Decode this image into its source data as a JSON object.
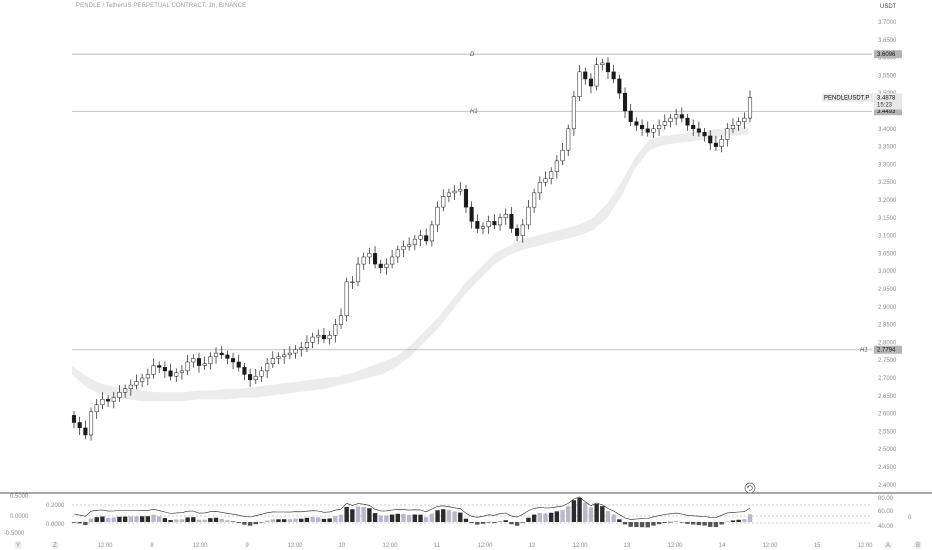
{
  "header": {
    "title": "PENDLE / TetherUS PERPETUAL CONTRACT, 1h, BINANCE",
    "currency": "USDT"
  },
  "axis_right": {
    "ticks": [
      "3.7000",
      "3.6500",
      "3.6000",
      "3.5500",
      "3.5000",
      "3.4500",
      "3.4000",
      "3.3500",
      "3.3000",
      "3.2500",
      "3.2000",
      "3.1500",
      "3.1000",
      "3.0500",
      "3.0000",
      "2.9500",
      "2.9000",
      "2.8500",
      "2.8000",
      "2.7500",
      "2.7000",
      "2.6500",
      "2.6000",
      "2.5500",
      "2.5000",
      "2.4500",
      "2.4000"
    ],
    "ticks_in_range": [
      "3.6000",
      "2.6000"
    ]
  },
  "levels": [
    {
      "label": "D",
      "value": "3.6096"
    },
    {
      "label": "H1",
      "value": "3.4493"
    },
    {
      "label": "H1",
      "value": "2.7794"
    }
  ],
  "symbol_badge": {
    "name": "PENDLEUSDT.P",
    "price": "3.4878",
    "countdown": "15:23",
    "level": "3.4493"
  },
  "x_axis": {
    "ticks": [
      "12:00",
      "8",
      "12:00",
      "9",
      "12:00",
      "10",
      "12:00",
      "11",
      "12:00",
      "12",
      "12:00",
      "13",
      "12:00",
      "14",
      "12:00",
      "15",
      "12:00"
    ]
  },
  "osc_left": {
    "ticks": [
      "0.5000",
      "0.2000",
      "0.0000",
      "0.0000",
      "-0.5000"
    ]
  },
  "osc_right": {
    "ticks": [
      "80.00",
      "60.00",
      "40.00"
    ],
    "side": "0"
  },
  "bottom_buttons": {
    "left1": "Y",
    "left2": "Z",
    "right1": "A",
    "right2": "B"
  },
  "chart_data": {
    "type": "candlestick",
    "symbol": "PENDLEUSDT.P",
    "interval": "1h",
    "ylim": [
      2.38,
      3.72
    ],
    "last_price": 3.4878,
    "horizontal_lines": [
      3.6096,
      3.4493,
      2.7794
    ],
    "close_series": [
      2.575,
      2.56,
      2.54,
      2.605,
      2.625,
      2.64,
      2.635,
      2.645,
      2.66,
      2.67,
      2.68,
      2.69,
      2.7,
      2.71,
      2.735,
      2.73,
      2.72,
      2.705,
      2.715,
      2.72,
      2.745,
      2.755,
      2.735,
      2.74,
      2.76,
      2.77,
      2.765,
      2.755,
      2.745,
      2.73,
      2.71,
      2.695,
      2.705,
      2.72,
      2.74,
      2.755,
      2.76,
      2.765,
      2.77,
      2.78,
      2.785,
      2.8,
      2.815,
      2.82,
      2.81,
      2.82,
      2.85,
      2.875,
      2.97,
      2.97,
      3.02,
      3.04,
      3.05,
      3.02,
      3.01,
      3.02,
      3.04,
      3.06,
      3.07,
      3.075,
      3.09,
      3.1,
      3.085,
      3.13,
      3.18,
      3.21,
      3.22,
      3.225,
      3.23,
      3.18,
      3.14,
      3.12,
      3.125,
      3.14,
      3.13,
      3.15,
      3.16,
      3.12,
      3.1,
      3.13,
      3.18,
      3.22,
      3.25,
      3.26,
      3.28,
      3.31,
      3.34,
      3.4,
      3.49,
      3.56,
      3.54,
      3.52,
      3.58,
      3.585,
      3.56,
      3.54,
      3.5,
      3.45,
      3.42,
      3.41,
      3.4,
      3.39,
      3.4,
      3.41,
      3.42,
      3.43,
      3.44,
      3.43,
      3.41,
      3.4,
      3.39,
      3.38,
      3.36,
      3.35,
      3.37,
      3.4,
      3.41,
      3.42,
      3.43,
      3.4878
    ],
    "band_upper": [
      2.735,
      2.705,
      2.685,
      2.675,
      2.67,
      2.665,
      2.66,
      2.66,
      2.66,
      2.665,
      2.665,
      2.67,
      2.67,
      2.675,
      2.68,
      2.685,
      2.69,
      2.695,
      2.7,
      2.705,
      2.715,
      2.73,
      2.745,
      2.76,
      2.79,
      2.83,
      2.87,
      2.92,
      2.97,
      3.01,
      3.05,
      3.07,
      3.09,
      3.1,
      3.11,
      3.12,
      3.13,
      3.15,
      3.19,
      3.25,
      3.32,
      3.37,
      3.38,
      3.385,
      3.39,
      3.395,
      3.4,
      3.405,
      3.405
    ],
    "band_lower": [
      2.71,
      2.675,
      2.655,
      2.645,
      2.64,
      2.635,
      2.635,
      2.635,
      2.635,
      2.64,
      2.64,
      2.64,
      2.645,
      2.645,
      2.65,
      2.655,
      2.66,
      2.665,
      2.67,
      2.68,
      2.69,
      2.7,
      2.71,
      2.73,
      2.76,
      2.8,
      2.84,
      2.89,
      2.94,
      2.98,
      3.02,
      3.045,
      3.06,
      3.07,
      3.08,
      3.09,
      3.1,
      3.115,
      3.15,
      3.21,
      3.29,
      3.34,
      3.355,
      3.36,
      3.365,
      3.37,
      3.375,
      3.38,
      3.385
    ]
  },
  "colors": {
    "bull": "#ffffff",
    "bear": "#1a1a1a",
    "wick": "#1a1a1a",
    "grid": "#c8c8c8",
    "band": "#ececec",
    "badge": "#b4b4b4",
    "badge_dark": "#3a3a3a"
  }
}
